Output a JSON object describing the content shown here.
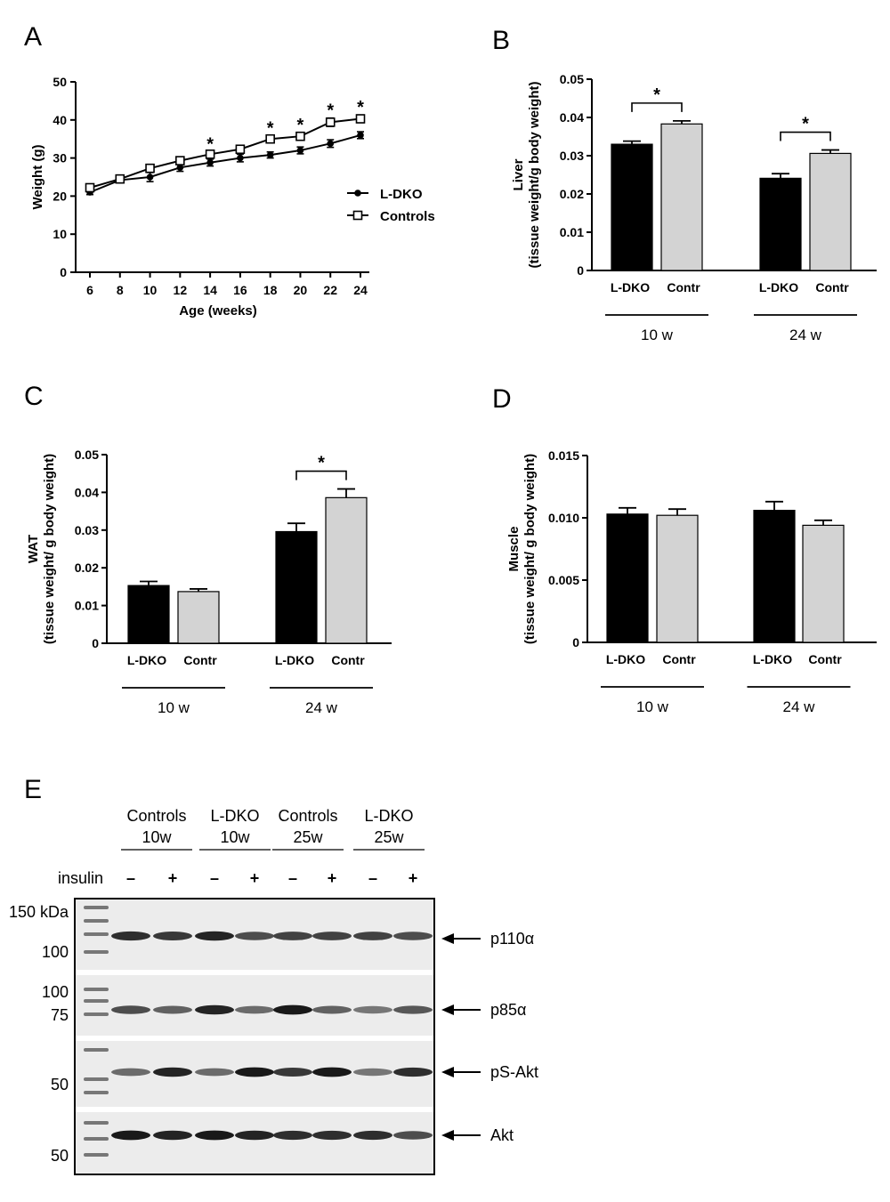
{
  "chart_data": [
    {
      "panel": "A",
      "type": "line",
      "xlabel": "Age (weeks)",
      "ylabel": "Weight (g)",
      "x": [
        6,
        8,
        10,
        12,
        14,
        16,
        18,
        20,
        22,
        24
      ],
      "ylim": [
        0,
        50
      ],
      "yticks": [
        "0",
        "10",
        "20",
        "30",
        "40",
        "50"
      ],
      "xticks": [
        "6",
        "8",
        "10",
        "12",
        "14",
        "16",
        "18",
        "20",
        "22",
        "24"
      ],
      "series": [
        {
          "name": "L-DKO",
          "marker": "filled-circle",
          "values": [
            21.0,
            24.2,
            25.0,
            27.5,
            28.8,
            30.0,
            30.8,
            32.0,
            33.8,
            36.0
          ],
          "errors": [
            0.6,
            0.7,
            1.2,
            1.0,
            0.9,
            1.0,
            0.8,
            0.9,
            1.0,
            0.9
          ]
        },
        {
          "name": "Controls",
          "marker": "open-square",
          "values": [
            22.2,
            24.5,
            27.3,
            29.3,
            31.0,
            32.3,
            35.0,
            35.7,
            39.4,
            40.3
          ],
          "errors": [
            0.5,
            0.6,
            0.7,
            0.8,
            0.7,
            0.7,
            0.9,
            1.0,
            1.1,
            1.0
          ]
        }
      ],
      "significance_star": "*",
      "significant_x": [
        14,
        18,
        20,
        22,
        24
      ],
      "legend_position": "right"
    },
    {
      "panel": "B",
      "type": "bar",
      "ylabel_line1": "Liver",
      "ylabel_line2": "(tissue weight/g body weight)",
      "ylim": [
        0,
        0.05
      ],
      "yticks": [
        "0",
        "0.01",
        "0.02",
        "0.03",
        "0.04",
        "0.05"
      ],
      "bar_labels": [
        "L-DKO",
        "Contr",
        "L-DKO",
        "Contr"
      ],
      "values": [
        0.033,
        0.0383,
        0.0241,
        0.0306
      ],
      "errors": [
        0.0008,
        0.0008,
        0.0012,
        0.0009
      ],
      "groups": [
        "10 w",
        "24 w"
      ],
      "significance_groups": [
        0,
        1
      ]
    },
    {
      "panel": "C",
      "type": "bar",
      "ylabel_line1": "WAT",
      "ylabel_line2": "(tissue weight/ g body weight)",
      "ylim": [
        0,
        0.05
      ],
      "yticks": [
        "0",
        "0.01",
        "0.02",
        "0.03",
        "0.04",
        "0.05"
      ],
      "bar_labels": [
        "L-DKO",
        "Contr",
        "L-DKO",
        "Contr"
      ],
      "values": [
        0.0153,
        0.0137,
        0.0296,
        0.0386
      ],
      "errors": [
        0.0011,
        0.0007,
        0.0022,
        0.0023
      ],
      "groups": [
        "10 w",
        "24 w"
      ],
      "significance_groups": [
        1
      ]
    },
    {
      "panel": "D",
      "type": "bar",
      "ylabel_line1": "Muscle",
      "ylabel_line2": "(tissue weight/ g body weight)",
      "ylim": [
        0,
        0.015
      ],
      "yticks": [
        "0",
        "0.005",
        "0.010",
        "0.015"
      ],
      "bar_labels": [
        "L-DKO",
        "Contr",
        "L-DKO",
        "Contr"
      ],
      "values": [
        0.0103,
        0.0102,
        0.0106,
        0.0094
      ],
      "errors": [
        0.0005,
        0.0005,
        0.0007,
        0.0004
      ],
      "groups": [
        "10 w",
        "24 w"
      ],
      "significance_groups": []
    }
  ],
  "colors": {
    "ldko_bar": "#000000",
    "control_bar": "#d3d3d3",
    "blot_bg": "#ececec"
  },
  "panels": {
    "a": "A",
    "b": "B",
    "c": "C",
    "d": "D",
    "e": "E"
  },
  "blot": {
    "groups": [
      {
        "line1": "Controls",
        "line2": "10w"
      },
      {
        "line1": "L-DKO",
        "line2": "10w"
      },
      {
        "line1": "Controls",
        "line2": "25w"
      },
      {
        "line1": "L-DKO",
        "line2": "25w"
      }
    ],
    "insulin_label": "insulin",
    "insulin_signs": [
      "–",
      "+",
      "–",
      "+",
      "–",
      "+",
      "–",
      "+"
    ],
    "markers": [
      "150 kDa",
      "100",
      "100",
      "75",
      "50",
      "50"
    ],
    "proteins": [
      "p110α",
      "p85α",
      "pS-Akt",
      "Akt"
    ],
    "band_intensity": [
      [
        0.85,
        0.8,
        0.9,
        0.7,
        0.75,
        0.75,
        0.75,
        0.7
      ],
      [
        0.7,
        0.6,
        0.9,
        0.55,
        0.95,
        0.6,
        0.5,
        0.65
      ],
      [
        0.55,
        0.9,
        0.55,
        0.95,
        0.8,
        0.95,
        0.5,
        0.85
      ],
      [
        0.95,
        0.9,
        0.95,
        0.9,
        0.85,
        0.85,
        0.85,
        0.7
      ]
    ]
  }
}
